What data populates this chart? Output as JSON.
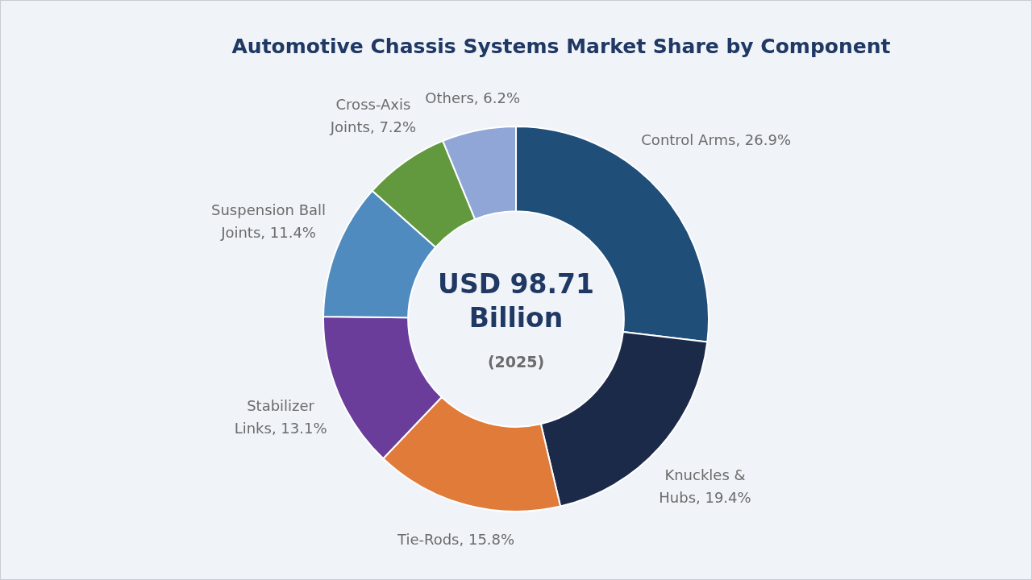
{
  "chart_data": {
    "type": "donut",
    "title": "Automotive Chassis Systems Market Share by Component",
    "categories": [
      "Control Arms",
      "Knuckles & Hubs",
      "Tie-Rods",
      "Stabilizer Links",
      "Suspension Ball Joints",
      "Cross-Axis Joints",
      "Others"
    ],
    "values": [
      26.9,
      19.4,
      15.8,
      13.1,
      11.4,
      7.2,
      6.2
    ],
    "value_labels": [
      "26.9%",
      "19.4%",
      "15.8%",
      "13.1%",
      "11.4%",
      "7.2%",
      "6.2%"
    ],
    "colors": [
      "#1f4e79",
      "#1c2a4a",
      "#e07b39",
      "#6a3d9a",
      "#4f8bbf",
      "#62993e",
      "#8fa6d6"
    ],
    "annotations": [
      "USD 98.71 Billion",
      "(2025)"
    ],
    "legend": false
  }
}
